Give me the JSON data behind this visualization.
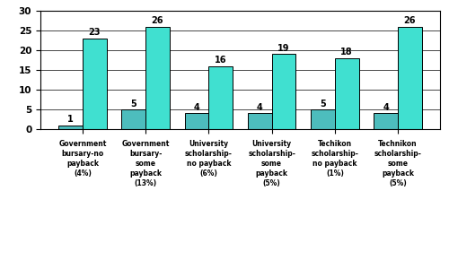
{
  "categories": [
    "Government\nbursary-no\npayback\n(4%)",
    "Government\nbursary-\nsome\npayback\n(13%)",
    "University\nscholarship-\nno payback\n(6%)",
    "University\nscholarship-\nsome\npayback\n(5%)",
    "Techikon\nscholarship-\nno payback\n(1%)",
    "Technikon\nscholarship-\nsome\npayback\n(5%)"
  ],
  "very_high": [
    1,
    5,
    4,
    4,
    5,
    4
  ],
  "high": [
    23,
    26,
    16,
    19,
    18,
    26
  ],
  "very_high_color": "#4DBDBD",
  "high_color": "#40E0D0",
  "ylim": [
    0,
    30
  ],
  "yticks": [
    0,
    5,
    10,
    15,
    20,
    25,
    30
  ],
  "bar_width": 0.38
}
